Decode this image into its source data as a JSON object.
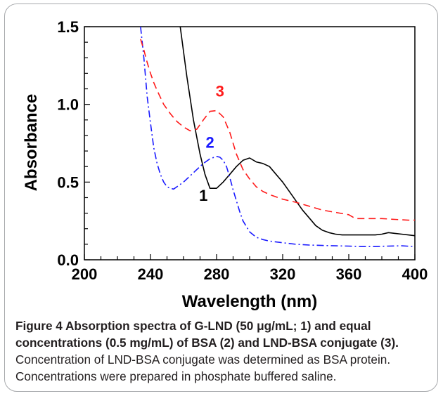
{
  "chart_data": {
    "type": "line",
    "title": "",
    "xlabel": "Wavelength (nm)",
    "ylabel": "Absorbance",
    "xlim": [
      200,
      400
    ],
    "ylim": [
      0.0,
      1.5
    ],
    "x_ticks": [
      "200",
      "240",
      "280",
      "320",
      "360",
      "400"
    ],
    "y_ticks": [
      "0.0",
      "0.5",
      "1.0",
      "1.5"
    ],
    "grid": false,
    "legend": "none",
    "series": [
      {
        "name": "1",
        "color": "#000000",
        "style": "solid",
        "x": [
          258,
          262,
          266,
          270,
          273,
          276,
          280,
          284,
          288,
          292,
          296,
          300,
          304,
          308,
          312,
          316,
          320,
          324,
          328,
          332,
          336,
          340,
          344,
          348,
          352,
          356,
          360,
          364,
          368,
          372,
          376,
          380,
          384,
          388,
          392,
          396,
          400
        ],
        "y": [
          1.5,
          1.18,
          0.9,
          0.68,
          0.55,
          0.46,
          0.46,
          0.5,
          0.55,
          0.6,
          0.64,
          0.655,
          0.63,
          0.62,
          0.6,
          0.55,
          0.5,
          0.44,
          0.38,
          0.32,
          0.27,
          0.22,
          0.19,
          0.175,
          0.165,
          0.16,
          0.16,
          0.16,
          0.16,
          0.16,
          0.16,
          0.165,
          0.175,
          0.17,
          0.165,
          0.16,
          0.155
        ]
      },
      {
        "name": "2",
        "color": "#1a1aff",
        "style": "dashdot",
        "x": [
          234,
          236,
          238,
          240,
          242,
          244,
          246,
          248,
          250,
          252,
          254,
          256,
          260,
          264,
          268,
          272,
          276,
          280,
          282,
          284,
          286,
          288,
          290,
          292,
          294,
          296,
          300,
          304,
          308,
          312,
          320,
          328,
          336,
          344,
          352,
          360,
          368,
          376,
          384,
          392,
          400
        ],
        "y": [
          1.5,
          1.3,
          1.05,
          0.88,
          0.72,
          0.62,
          0.55,
          0.5,
          0.47,
          0.46,
          0.455,
          0.47,
          0.5,
          0.54,
          0.58,
          0.62,
          0.65,
          0.665,
          0.66,
          0.64,
          0.6,
          0.53,
          0.45,
          0.38,
          0.31,
          0.25,
          0.18,
          0.145,
          0.13,
          0.12,
          0.11,
          0.1,
          0.095,
          0.092,
          0.09,
          0.088,
          0.085,
          0.085,
          0.088,
          0.09,
          0.085
        ]
      },
      {
        "name": "3",
        "color": "#ff1a1a",
        "style": "dashed",
        "x": [
          234,
          236,
          238,
          240,
          242,
          244,
          248,
          252,
          256,
          260,
          264,
          268,
          272,
          276,
          280,
          284,
          288,
          292,
          296,
          300,
          304,
          308,
          312,
          316,
          320,
          328,
          336,
          344,
          352,
          360,
          364,
          372,
          380,
          388,
          396,
          400
        ],
        "y": [
          1.42,
          1.35,
          1.27,
          1.2,
          1.14,
          1.09,
          1.0,
          0.94,
          0.89,
          0.855,
          0.83,
          0.84,
          0.9,
          0.955,
          0.96,
          0.92,
          0.82,
          0.68,
          0.58,
          0.52,
          0.47,
          0.44,
          0.42,
          0.405,
          0.39,
          0.37,
          0.345,
          0.32,
          0.305,
          0.29,
          0.265,
          0.265,
          0.265,
          0.26,
          0.255,
          0.255
        ]
      }
    ],
    "annotations": [
      {
        "text": "1",
        "x": 272,
        "y": 0.38,
        "color": "#000000"
      },
      {
        "text": "2",
        "x": 276,
        "y": 0.72,
        "color": "#1a1aff"
      },
      {
        "text": "3",
        "x": 282,
        "y": 1.05,
        "color": "#ff1a1a"
      }
    ]
  },
  "caption": {
    "bold": "Figure 4 Absorption spectra of G-LND (50 μg/mL; 1) and equal concentrations (0.5 mg/mL) of BSA (2) and LND-BSA conjugate (3).",
    "normal": " Concentration of LND-BSA conjugate was determined as BSA protein. Concentrations were prepared in phosphate buffered saline."
  }
}
